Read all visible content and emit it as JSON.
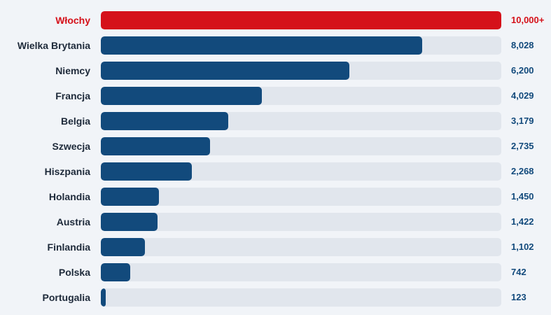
{
  "colors": {
    "bar": "#124a7c",
    "highlight": "#d5111a",
    "track": "#e1e6ed",
    "background": "#f1f4f8"
  },
  "chart_data": {
    "type": "bar",
    "orientation": "horizontal",
    "categories": [
      "Włochy",
      "Wielka Brytania",
      "Niemcy",
      "Francja",
      "Belgia",
      "Szwecja",
      "Hiszpania",
      "Holandia",
      "Austria",
      "Finlandia",
      "Polska",
      "Portugalia"
    ],
    "values": [
      10000,
      8028,
      6200,
      4029,
      3179,
      2735,
      2268,
      1450,
      1422,
      1102,
      742,
      123
    ],
    "value_labels": [
      "10,000+",
      "8,028",
      "6,200",
      "4,029",
      "3,179",
      "2,735",
      "2,268",
      "1,450",
      "1,422",
      "1,102",
      "742",
      "123"
    ],
    "highlight_index": 0,
    "xlim": [
      0,
      10000
    ],
    "grid": false,
    "legend": "none"
  }
}
